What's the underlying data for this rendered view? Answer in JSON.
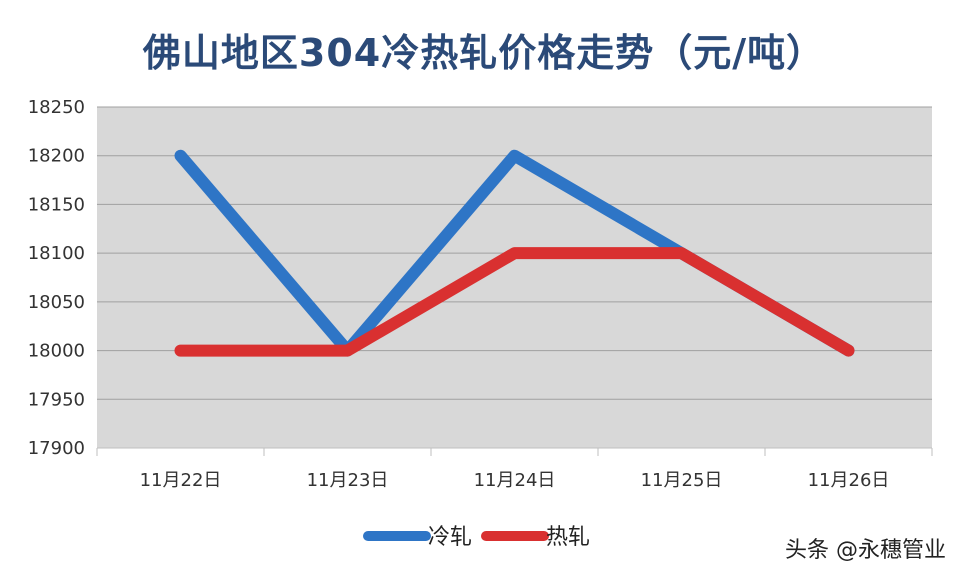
{
  "chart_data": {
    "type": "line",
    "title": "佛山地区304冷热轧价格走势（元/吨）",
    "categories": [
      "11月22日",
      "11月23日",
      "11月24日",
      "11月25日",
      "11月26日"
    ],
    "series": [
      {
        "name": "冷轧",
        "color": "#2e75c6",
        "values": [
          18200,
          18000,
          18200,
          18100,
          18000
        ]
      },
      {
        "name": "热轧",
        "color": "#d93030",
        "values": [
          18000,
          18000,
          18100,
          18100,
          18000
        ]
      }
    ],
    "ylim": [
      17900,
      18250
    ],
    "yticks": [
      18250,
      18200,
      18150,
      18100,
      18050,
      18000,
      17950,
      17900
    ],
    "grid": true,
    "legend": "bottom",
    "plot_background": "#d8d8d8"
  },
  "watermark": "头条 @永穗管业"
}
